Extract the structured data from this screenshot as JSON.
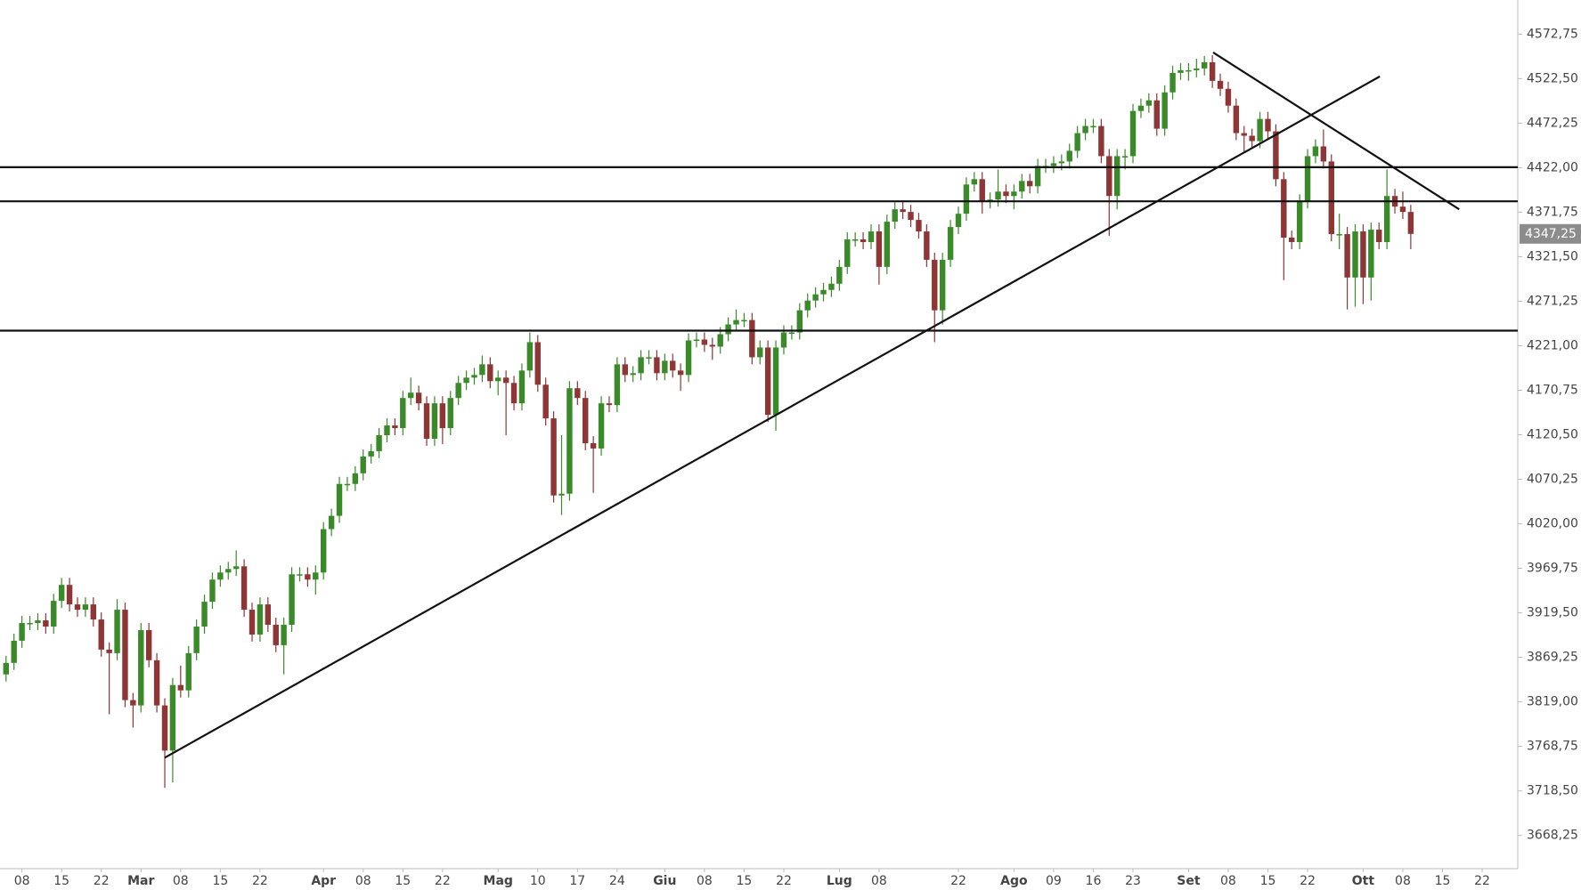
{
  "chart_data": {
    "type": "candlestick",
    "categories": [
      null,
      null,
      "08",
      null,
      null,
      null,
      null,
      "15",
      null,
      null,
      null,
      null,
      "22",
      null,
      null,
      null,
      null,
      "Mar",
      null,
      null,
      null,
      null,
      "08",
      null,
      null,
      null,
      null,
      "15",
      null,
      null,
      null,
      null,
      "22",
      null,
      null,
      null,
      null,
      null,
      null,
      null,
      "Apr",
      null,
      null,
      null,
      null,
      "08",
      null,
      null,
      null,
      null,
      "15",
      null,
      null,
      null,
      null,
      "22",
      null,
      null,
      null,
      null,
      null,
      null,
      "Mag",
      null,
      null,
      null,
      null,
      "10",
      null,
      null,
      null,
      null,
      "17",
      null,
      null,
      null,
      null,
      "24",
      null,
      null,
      null,
      null,
      null,
      "Giu",
      null,
      null,
      null,
      null,
      "08",
      null,
      null,
      null,
      null,
      "15",
      null,
      null,
      null,
      null,
      "22",
      null,
      null,
      null,
      null,
      null,
      null,
      "Lug",
      null,
      null,
      null,
      null,
      "08",
      null,
      null,
      null,
      null,
      null,
      null,
      null,
      null,
      null,
      "22",
      null,
      null,
      null,
      null,
      null,
      null,
      "Ago",
      null,
      null,
      null,
      null,
      "09",
      null,
      null,
      null,
      null,
      "16",
      null,
      null,
      null,
      null,
      "23",
      null,
      null,
      null,
      null,
      null,
      null,
      "Set",
      null,
      null,
      null,
      null,
      "08",
      null,
      null,
      null,
      null,
      "15",
      null,
      null,
      null,
      null,
      "22",
      null,
      null,
      null,
      null,
      null,
      null,
      "Ott",
      null,
      null,
      null,
      null,
      "08",
      null,
      null,
      null,
      null,
      "15",
      null,
      null,
      null,
      null,
      "22"
    ],
    "open": [
      3850,
      3863,
      3888,
      3908,
      3908,
      3911,
      3904,
      3933,
      3951,
      3929,
      3923,
      3929,
      3912,
      3878,
      3874,
      3923,
      3821,
      3815,
      3900,
      3866,
      3815,
      3764,
      3838,
      3832,
      3874,
      3904,
      3932,
      3957,
      3965,
      3969,
      3972,
      3923,
      3895,
      3929,
      3906,
      3883,
      3906,
      3963,
      3963,
      3957,
      3965,
      4014,
      4029,
      4065,
      4065,
      4077,
      4096,
      4102,
      4120,
      4131,
      4128,
      4162,
      4168,
      4156,
      4116,
      4156,
      4128,
      4162,
      4179,
      4185,
      4188,
      4200,
      4181,
      4185,
      4179,
      4156,
      4193,
      4225,
      4177,
      4139,
      4052,
      4054,
      4173,
      4162,
      4111,
      4105,
      4156,
      4154,
      4200,
      4188,
      4190,
      4208,
      4208,
      4190,
      4204,
      4193,
      4188,
      4227,
      4228,
      4222,
      4220,
      4234,
      4245,
      4250,
      4250,
      4208,
      4219,
      4143,
      4219,
      4236,
      4236,
      4261,
      4272,
      4279,
      4284,
      4291,
      4310,
      4341,
      4341,
      4338,
      4350,
      4310,
      4361,
      4375,
      4372,
      4363,
      4350,
      4318,
      4261,
      4318,
      4355,
      4370,
      4403,
      4409,
      4384,
      4386,
      4395,
      4390,
      4395,
      4407,
      4401,
      4424,
      4424,
      4427,
      4429,
      4441,
      4461,
      4469,
      4469,
      4435,
      4390,
      4435,
      4435,
      4486,
      4492,
      4498,
      4466,
      4507,
      4529,
      4532,
      4532,
      4534,
      4541,
      4520,
      4511,
      4492,
      4461,
      4458,
      4452,
      4477,
      4463,
      4409,
      4343,
      4338,
      4384,
      4435,
      4446,
      4429,
      4347,
      4347,
      4298,
      4350,
      4298,
      4352,
      4338,
      4390,
      4378,
      4372,
      null,
      null,
      null,
      null,
      null,
      null,
      null,
      null,
      null
    ],
    "close": [
      3863,
      3888,
      3908,
      3908,
      3911,
      3904,
      3933,
      3951,
      3929,
      3923,
      3929,
      3912,
      3878,
      3874,
      3923,
      3821,
      3815,
      3900,
      3866,
      3815,
      3764,
      3838,
      3832,
      3874,
      3904,
      3932,
      3957,
      3965,
      3969,
      3972,
      3923,
      3895,
      3929,
      3906,
      3883,
      3906,
      3963,
      3963,
      3957,
      3965,
      4014,
      4029,
      4065,
      4065,
      4077,
      4096,
      4102,
      4120,
      4131,
      4128,
      4162,
      4168,
      4156,
      4116,
      4156,
      4128,
      4162,
      4179,
      4185,
      4188,
      4200,
      4181,
      4185,
      4179,
      4156,
      4193,
      4225,
      4177,
      4139,
      4052,
      4054,
      4173,
      4162,
      4111,
      4105,
      4156,
      4154,
      4200,
      4188,
      4190,
      4208,
      4208,
      4190,
      4204,
      4193,
      4188,
      4227,
      4228,
      4222,
      4220,
      4234,
      4245,
      4250,
      4250,
      4208,
      4219,
      4143,
      4219,
      4236,
      4236,
      4261,
      4272,
      4279,
      4284,
      4291,
      4310,
      4341,
      4341,
      4338,
      4350,
      4310,
      4361,
      4375,
      4372,
      4363,
      4350,
      4318,
      4261,
      4318,
      4355,
      4370,
      4403,
      4409,
      4384,
      4386,
      4395,
      4390,
      4395,
      4407,
      4401,
      4424,
      4424,
      4427,
      4429,
      4441,
      4461,
      4469,
      4469,
      4435,
      4390,
      4435,
      4435,
      4486,
      4492,
      4498,
      4466,
      4507,
      4529,
      4532,
      4532,
      4534,
      4541,
      4520,
      4511,
      4492,
      4461,
      4458,
      4452,
      4477,
      4463,
      4409,
      4343,
      4338,
      4384,
      4435,
      4446,
      4429,
      4347,
      4347,
      4298,
      4350,
      4298,
      4352,
      4338,
      4390,
      4378,
      4372,
      4347.25,
      null,
      null,
      null,
      null,
      null,
      null,
      null,
      null,
      null
    ],
    "high": [
      3871,
      3896,
      3916,
      3916,
      3919,
      3919,
      3941,
      3959,
      3959,
      3937,
      3937,
      3937,
      3920,
      3886,
      3935,
      3931,
      3829,
      3908,
      3908,
      3874,
      3823,
      3846,
      3860,
      3882,
      3912,
      3940,
      3965,
      3973,
      3977,
      3990,
      3980,
      3931,
      3937,
      3937,
      3914,
      3914,
      3971,
      3971,
      3971,
      3973,
      4022,
      4037,
      4073,
      4073,
      4085,
      4104,
      4110,
      4128,
      4139,
      4139,
      4170,
      4185,
      4176,
      4164,
      4164,
      4164,
      4170,
      4187,
      4193,
      4196,
      4210,
      4208,
      4193,
      4193,
      4187,
      4201,
      4236,
      4233,
      4185,
      4147,
      4120,
      4181,
      4181,
      4170,
      4119,
      4164,
      4164,
      4208,
      4208,
      4198,
      4216,
      4216,
      4216,
      4212,
      4212,
      4201,
      4235,
      4236,
      4236,
      4230,
      4242,
      4253,
      4262,
      4258,
      4258,
      4227,
      4227,
      4227,
      4244,
      4244,
      4269,
      4280,
      4287,
      4292,
      4299,
      4318,
      4349,
      4349,
      4349,
      4358,
      4358,
      4369,
      4383,
      4385,
      4380,
      4371,
      4358,
      4326,
      4326,
      4363,
      4378,
      4411,
      4417,
      4417,
      4394,
      4420,
      4403,
      4403,
      4415,
      4415,
      4432,
      4432,
      4435,
      4437,
      4449,
      4469,
      4477,
      4477,
      4477,
      4443,
      4443,
      4443,
      4494,
      4500,
      4506,
      4506,
      4515,
      4537,
      4540,
      4540,
      4545,
      4548,
      4549,
      4528,
      4519,
      4500,
      4469,
      4466,
      4485,
      4485,
      4471,
      4417,
      4351,
      4392,
      4443,
      4454,
      4465,
      4437,
      4370,
      4355,
      4358,
      4358,
      4360,
      4360,
      4420,
      4398,
      4395,
      4380,
      null,
      null,
      null,
      null,
      null,
      null,
      null,
      null,
      null
    ],
    "low": [
      3842,
      3855,
      3880,
      3900,
      3900,
      3896,
      3896,
      3925,
      3921,
      3915,
      3915,
      3904,
      3870,
      3805,
      3866,
      3813,
      3790,
      3807,
      3858,
      3807,
      3722,
      3728,
      3824,
      3824,
      3866,
      3896,
      3924,
      3949,
      3957,
      3961,
      3915,
      3887,
      3887,
      3898,
      3875,
      3850,
      3898,
      3955,
      3949,
      3940,
      3957,
      4006,
      4021,
      4057,
      4057,
      4069,
      4088,
      4094,
      4112,
      4120,
      4120,
      4154,
      4148,
      4108,
      4108,
      4110,
      4120,
      4154,
      4171,
      4177,
      4180,
      4173,
      4165,
      4120,
      4148,
      4148,
      4185,
      4169,
      4131,
      4044,
      4030,
      4046,
      4154,
      4103,
      4055,
      4097,
      4146,
      4146,
      4180,
      4180,
      4182,
      4200,
      4182,
      4182,
      4185,
      4170,
      4180,
      4219,
      4214,
      4205,
      4212,
      4226,
      4237,
      4242,
      4200,
      4200,
      4135,
      4125,
      4211,
      4228,
      4228,
      4253,
      4264,
      4271,
      4276,
      4283,
      4302,
      4333,
      4330,
      4330,
      4290,
      4302,
      4353,
      4364,
      4355,
      4342,
      4310,
      4225,
      4245,
      4310,
      4347,
      4362,
      4395,
      4370,
      4376,
      4378,
      4382,
      4375,
      4387,
      4393,
      4393,
      4416,
      4416,
      4419,
      4421,
      4433,
      4453,
      4461,
      4427,
      4345,
      4375,
      4420,
      4427,
      4478,
      4484,
      4458,
      4458,
      4499,
      4521,
      4520,
      4524,
      4526,
      4512,
      4503,
      4484,
      4453,
      4440,
      4444,
      4444,
      4455,
      4401,
      4295,
      4330,
      4330,
      4376,
      4427,
      4421,
      4339,
      4330,
      4262,
      4265,
      4268,
      4272,
      4330,
      4330,
      4370,
      4364,
      4330,
      null,
      null,
      null,
      null,
      null,
      null,
      null,
      null,
      null
    ],
    "up_color": "#3a8a2a",
    "down_color": "#8e3535",
    "ylim": [
      3630.75,
      4611.25
    ],
    "yticks": [
      {
        "value": 3668.25,
        "label": "3668,25"
      },
      {
        "value": 3718.5,
        "label": "3718,50"
      },
      {
        "value": 3768.75,
        "label": "3768,75"
      },
      {
        "value": 3819,
        "label": "3819,00"
      },
      {
        "value": 3869.25,
        "label": "3869,25"
      },
      {
        "value": 3919.5,
        "label": "3919,50"
      },
      {
        "value": 3969.75,
        "label": "3969,75"
      },
      {
        "value": 4020,
        "label": "4020,00"
      },
      {
        "value": 4070.25,
        "label": "4070,25"
      },
      {
        "value": 4120.5,
        "label": "4120,50"
      },
      {
        "value": 4170.75,
        "label": "4170,75"
      },
      {
        "value": 4221,
        "label": "4221,00"
      },
      {
        "value": 4271.25,
        "label": "4271,25"
      },
      {
        "value": 4321.5,
        "label": "4321,50"
      },
      {
        "value": 4371.75,
        "label": "4371,75"
      },
      {
        "value": 4422,
        "label": "4422,00"
      },
      {
        "value": 4472.25,
        "label": "4472,25"
      },
      {
        "value": 4522.5,
        "label": "4522,50"
      },
      {
        "value": 4572.75,
        "label": "4572,75"
      }
    ],
    "last_price": {
      "value": 4347.25,
      "label": "4347,25"
    },
    "hlines": [
      4422.5,
      4384,
      4238
    ],
    "trendlines": [
      {
        "x": [
          20,
          173.1
        ],
        "y": [
          3756,
          4525
        ]
      },
      {
        "x": [
          152.1,
          183.1
        ],
        "y": [
          4552,
          4375
        ]
      }
    ]
  }
}
